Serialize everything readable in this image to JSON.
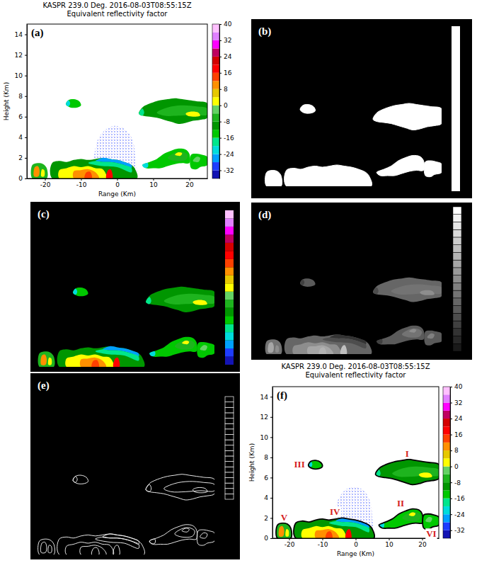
{
  "chart_data": [
    {
      "label": "(a)",
      "type": "rhi",
      "title": "KASPR 239.0 Deg. 2016-08-03T08:55:15Z",
      "subtitle": "Equivalent reflectivity factor",
      "x_label": "Range (Km)",
      "y_label": "Height (Km)",
      "xlim": [
        -25,
        25
      ],
      "xticks": [
        -20,
        -10,
        0,
        10,
        20
      ],
      "ylim": [
        0,
        15
      ],
      "yticks": [
        0,
        2,
        4,
        6,
        8,
        10,
        12,
        14
      ],
      "colorbar": {
        "range": [
          -36,
          40
        ],
        "ticks": [
          -32,
          -24,
          -16,
          -8,
          0,
          8,
          16,
          24,
          32,
          40
        ],
        "colors": [
          "#1414b4",
          "#1e3cff",
          "#00a0ff",
          "#00dcdc",
          "#00e68c",
          "#00c800",
          "#009600",
          "#1eb41e",
          "#64d264",
          "#ffff00",
          "#e6c800",
          "#ff9000",
          "#ff4000",
          "#ff0000",
          "#d40000",
          "#c00060",
          "#ff00ff",
          "#e080ff",
          "#ffc0ff"
        ]
      },
      "clutter": {
        "value": -30,
        "outline": [
          [
            -6,
            0
          ],
          [
            -6,
            3
          ],
          [
            -5,
            4
          ],
          [
            -3,
            4.8
          ],
          [
            -1,
            5.1
          ],
          [
            1,
            5
          ],
          [
            3,
            4.5
          ],
          [
            4.5,
            3.5
          ],
          [
            5,
            2
          ],
          [
            5,
            0
          ]
        ]
      },
      "echoes": [
        {
          "value": -12,
          "outline": [
            [
              6,
              6.3
            ],
            [
              7,
              6.9
            ],
            [
              8.5,
              7.2
            ],
            [
              10,
              7.4
            ],
            [
              12,
              7.6
            ],
            [
              14,
              7.7
            ],
            [
              16,
              7.8
            ],
            [
              18,
              7.7
            ],
            [
              20,
              7.6
            ],
            [
              22,
              7.5
            ],
            [
              25,
              7.3
            ],
            [
              25,
              5.9
            ],
            [
              23,
              5.7
            ],
            [
              21,
              5.6
            ],
            [
              19,
              5.4
            ],
            [
              17,
              5.3
            ],
            [
              15,
              5.5
            ],
            [
              13,
              5.7
            ],
            [
              11,
              5.9
            ],
            [
              9,
              6.0
            ],
            [
              7,
              6.1
            ]
          ],
          "cores": [
            {
              "value": -20,
              "outline": [
                [
                  6,
                  6.3
                ],
                [
                  7,
                  6.8
                ],
                [
                  7.5,
                  6.4
                ],
                [
                  7,
                  6.1
                ]
              ]
            },
            {
              "value": -8,
              "outline": [
                [
                  11,
                  6.4
                ],
                [
                  14,
                  6.9
                ],
                [
                  18,
                  7.1
                ],
                [
                  22,
                  7.0
                ],
                [
                  25,
                  6.8
                ],
                [
                  25,
                  6.2
                ],
                [
                  21,
                  6.2
                ],
                [
                  17,
                  6.1
                ],
                [
                  13,
                  6.1
                ]
              ]
            },
            {
              "value": 0,
              "outline": [
                [
                  19,
                  6.3
                ],
                [
                  20.5,
                  6.5
                ],
                [
                  22.5,
                  6.4
                ],
                [
                  23,
                  6.1
                ],
                [
                  21,
                  6.0
                ],
                [
                  19.5,
                  6.1
                ]
              ]
            }
          ]
        },
        {
          "value": -14,
          "outline": [
            [
              7,
              1.3
            ],
            [
              9,
              1.6
            ],
            [
              11,
              1.9
            ],
            [
              13,
              2.4
            ],
            [
              15,
              2.7
            ],
            [
              17,
              2.9
            ],
            [
              19,
              2.8
            ],
            [
              20,
              2.4
            ],
            [
              20,
              1.5
            ],
            [
              18,
              1.5
            ],
            [
              16,
              1.4
            ],
            [
              14,
              1.2
            ],
            [
              12,
              1.0
            ],
            [
              10,
              1.0
            ],
            [
              8,
              1.0
            ]
          ],
          "cores": [
            {
              "value": -24,
              "outline": [
                [
                  7,
                  1.3
                ],
                [
                  8.5,
                  1.5
                ],
                [
                  8.5,
                  1.1
                ],
                [
                  7.5,
                  1.05
                ]
              ]
            },
            {
              "value": -8,
              "outline": [
                [
                  14,
                  2.0
                ],
                [
                  16,
                  2.5
                ],
                [
                  18,
                  2.6
                ],
                [
                  19.5,
                  2.3
                ],
                [
                  19,
                  1.8
                ],
                [
                  16,
                  1.7
                ]
              ]
            },
            {
              "value": 0,
              "outline": [
                [
                  16,
                  2.3
                ],
                [
                  17,
                  2.55
                ],
                [
                  18,
                  2.45
                ],
                [
                  17.5,
                  2.2
                ]
              ]
            }
          ]
        },
        {
          "value": -16,
          "outline": [
            [
              -14.2,
              7.2
            ],
            [
              -13.5,
              7.6
            ],
            [
              -12,
              7.7
            ],
            [
              -10.5,
              7.5
            ],
            [
              -10,
              7.1
            ],
            [
              -11,
              6.9
            ],
            [
              -13,
              6.9
            ]
          ],
          "cores": [
            {
              "value": -24,
              "outline": [
                [
                  -14.2,
                  7.2
                ],
                [
                  -13.5,
                  7.6
                ],
                [
                  -13,
                  7.3
                ],
                [
                  -13.5,
                  7.0
                ]
              ]
            }
          ]
        },
        {
          "value": -12,
          "outline": [
            [
              -18,
              0
            ],
            [
              -18,
              1.5
            ],
            [
              -16,
              1.7
            ],
            [
              -14,
              1.6
            ],
            [
              -12,
              1.8
            ],
            [
              -10,
              1.9
            ],
            [
              -8,
              1.8
            ],
            [
              -6,
              1.9
            ],
            [
              -4,
              2.0
            ],
            [
              -2,
              1.9
            ],
            [
              0,
              1.8
            ],
            [
              2,
              1.6
            ],
            [
              4,
              1.3
            ],
            [
              5,
              0.9
            ],
            [
              5.5,
              0
            ]
          ],
          "cores": [
            {
              "value": -28,
              "outline": [
                [
                  -6,
                  1.7
                ],
                [
                  -4,
                  2.0
                ],
                [
                  -2,
                  1.9
                ],
                [
                  0,
                  1.8
                ],
                [
                  2,
                  1.6
                ],
                [
                  4,
                  1.3
                ],
                [
                  4,
                  1.0
                ],
                [
                  2,
                  1.3
                ],
                [
                  0,
                  1.5
                ],
                [
                  -2,
                  1.6
                ],
                [
                  -4,
                  1.6
                ]
              ]
            },
            {
              "value": -20,
              "outline": [
                [
                  -8,
                  1.5
                ],
                [
                  -6,
                  1.7
                ],
                [
                  -4,
                  1.6
                ],
                [
                  -2,
                  1.6
                ],
                [
                  0,
                  1.5
                ],
                [
                  2,
                  1.3
                ],
                [
                  4,
                  1.0
                ],
                [
                  4,
                  0.6
                ],
                [
                  0,
                  1.1
                ],
                [
                  -4,
                  1.2
                ]
              ]
            },
            {
              "value": 0,
              "outline": [
                [
                  -16,
                  0
                ],
                [
                  -16,
                  0.8
                ],
                [
                  -14,
                  1.0
                ],
                [
                  -12,
                  1.2
                ],
                [
                  -10,
                  1.1
                ],
                [
                  -8,
                  1.2
                ],
                [
                  -6,
                  1.0
                ],
                [
                  -4,
                  0.9
                ],
                [
                  -3,
                  0
                ]
              ]
            },
            {
              "value": 8,
              "outline": [
                [
                  -12,
                  0
                ],
                [
                  -12,
                  0.7
                ],
                [
                  -10,
                  0.8
                ],
                [
                  -8,
                  0.9
                ],
                [
                  -6,
                  0.6
                ],
                [
                  -5,
                  0
                ]
              ]
            },
            {
              "value": 12,
              "outline": [
                [
                  -9,
                  0
                ],
                [
                  -8.5,
                  0.6
                ],
                [
                  -7.5,
                  0.65
                ],
                [
                  -7,
                  0
                ]
              ]
            },
            {
              "value": 16,
              "outline": [
                [
                  -3,
                  0
                ],
                [
                  -2.5,
                  0.8
                ],
                [
                  -1.8,
                  0.9
                ],
                [
                  -1.3,
                  0
                ]
              ]
            }
          ]
        },
        {
          "value": -8,
          "outline": [
            [
              -23.5,
              0
            ],
            [
              -23.5,
              1.3
            ],
            [
              -22,
              1.5
            ],
            [
              -20.5,
              1.4
            ],
            [
              -19.5,
              1.0
            ],
            [
              -19.5,
              0
            ]
          ],
          "cores": [
            {
              "value": 8,
              "outline": [
                [
                  -23,
                  0.2
                ],
                [
                  -22.8,
                  1.1
                ],
                [
                  -22,
                  1.2
                ],
                [
                  -21.5,
                  0.8
                ],
                [
                  -21.8,
                  0.2
                ]
              ]
            },
            {
              "value": 0,
              "outline": [
                [
                  -21,
                  0.2
                ],
                [
                  -20.8,
                  0.9
                ],
                [
                  -20.2,
                  0.8
                ],
                [
                  -20.2,
                  0.2
                ]
              ]
            }
          ]
        },
        {
          "value": -14,
          "outline": [
            [
              20.5,
              1.0
            ],
            [
              20.5,
              2.3
            ],
            [
              22,
              2.4
            ],
            [
              23.5,
              2.3
            ],
            [
              25,
              2.1
            ],
            [
              25,
              1.3
            ],
            [
              23,
              1.1
            ],
            [
              22,
              0.9
            ]
          ],
          "cores": [
            {
              "value": -4,
              "outline": [
                [
                  21,
                  1.7
                ],
                [
                  22,
                  2.1
                ],
                [
                  23,
                  2.0
                ],
                [
                  22.5,
                  1.6
                ]
              ]
            }
          ]
        }
      ]
    },
    {
      "label": "(b)",
      "type": "mask",
      "color": "#ffffff",
      "tick_labels": false
    },
    {
      "label": "(c)",
      "type": "masked",
      "tick_labels": false
    },
    {
      "label": "(d)",
      "type": "grayscale",
      "tick_labels": false
    },
    {
      "label": "(e)",
      "type": "contour",
      "tick_labels": false
    },
    {
      "label": "(f)",
      "type": "rhi",
      "title": "KASPR 239.0 Deg. 2016-08-03T08:55:15Z",
      "subtitle": "Equivalent reflectivity factor",
      "x_label": "Range (Km)",
      "y_label": "Height (Km)",
      "xlim": [
        -25,
        25
      ],
      "xticks": [
        -20,
        -10,
        0,
        10,
        20
      ],
      "ylim": [
        0,
        15
      ],
      "yticks": [
        0,
        2,
        4,
        6,
        8,
        10,
        12,
        14
      ],
      "colorbar": {
        "range": [
          -36,
          40
        ],
        "ticks": [
          -32,
          -24,
          -16,
          -8,
          0,
          8,
          16,
          24,
          32,
          40
        ]
      },
      "region_labels": [
        "I",
        "II",
        "III",
        "IV",
        "V",
        "VI"
      ]
    }
  ]
}
